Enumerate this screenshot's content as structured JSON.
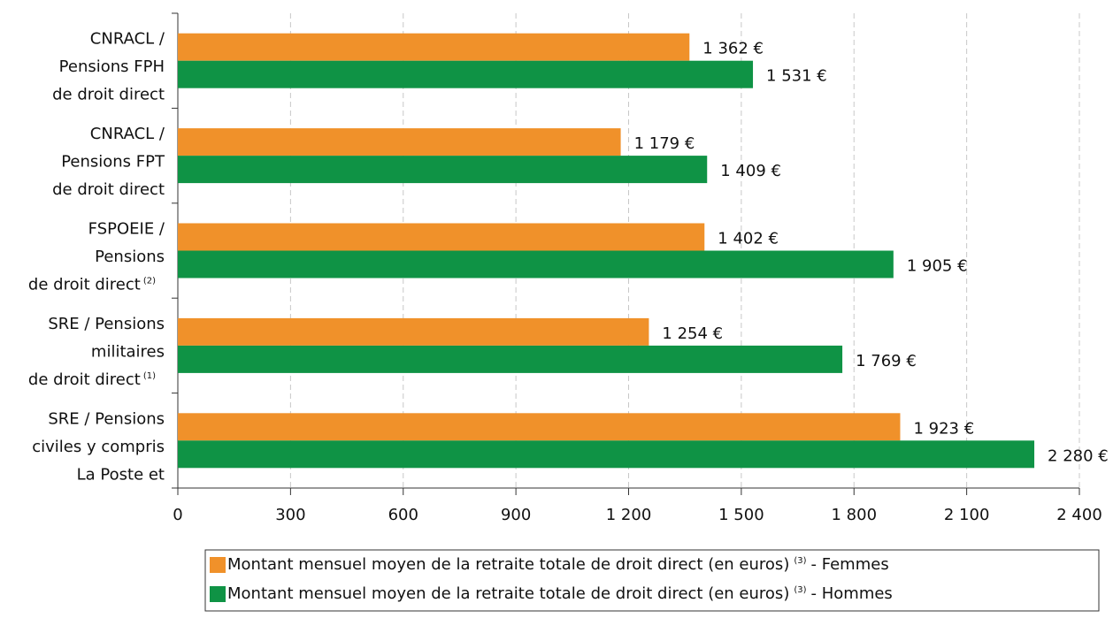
{
  "chart_data": {
    "type": "hbar",
    "categories": [
      [
        "CNRACL /",
        "Pensions FPH",
        "de droit direct"
      ],
      [
        "CNRACL /",
        "Pensions FPT",
        "de droit direct"
      ],
      [
        "FSPOEIE /",
        "Pensions",
        "de droit direct"
      ],
      [
        "SRE / Pensions",
        "militaires",
        "de droit direct"
      ],
      [
        "SRE / Pensions",
        "civiles y compris",
        "La Poste et"
      ]
    ],
    "category_notes": [
      null,
      null,
      "(2)",
      "(1)",
      null
    ],
    "series": [
      {
        "name": "Montant mensuel moyen de la retraite totale de droit direct (en euros)",
        "name_note": "(3)",
        "name_suffix": "- Femmes",
        "color": "#f0912a",
        "values": [
          1362,
          1179,
          1402,
          1254,
          1923
        ],
        "value_labels": [
          "1 362 €",
          "1 179 €",
          "1 402 €",
          "1 254 €",
          "1 923 €"
        ]
      },
      {
        "name": "Montant mensuel moyen de la retraite totale de droit direct (en euros)",
        "name_note": "(3)",
        "name_suffix": "- Hommes",
        "color": "#0f9345",
        "values": [
          1531,
          1409,
          1905,
          1769,
          2280
        ],
        "value_labels": [
          "1 531 €",
          "1 409 €",
          "1 905 €",
          "1 769 €",
          "2 280 €"
        ]
      }
    ],
    "xlim": [
      0,
      2400
    ],
    "xticks": [
      0,
      300,
      600,
      900,
      {
        "value": 1200,
        "label": "1 200"
      },
      {
        "value": 1500,
        "label": "1 500"
      },
      {
        "value": 1800,
        "label": "1 800"
      },
      {
        "value": 2100,
        "label": "2 100"
      },
      {
        "value": 2400,
        "label": "2 400"
      }
    ],
    "grid": true,
    "legend": "bottom"
  }
}
